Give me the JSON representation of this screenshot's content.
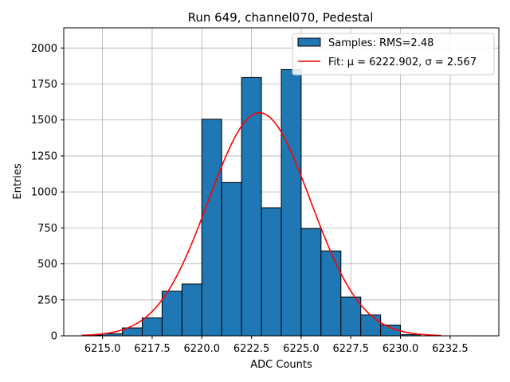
{
  "chart_data": {
    "type": "bar",
    "title": "Run 649, channel070, Pedestal",
    "xlabel": "ADC Counts",
    "ylabel": "Entries",
    "xlim": [
      6213.05,
      6234.95
    ],
    "ylim": [
      0,
      2140
    ],
    "grid": true,
    "legend_position": "top-right",
    "x_ticks": [
      6215.0,
      6217.5,
      6220.0,
      6222.5,
      6225.0,
      6227.5,
      6230.0,
      6232.5
    ],
    "x_tick_labels": [
      "6215.0",
      "6217.5",
      "6220.0",
      "6222.5",
      "6225.0",
      "6227.5",
      "6230.0",
      "6232.5"
    ],
    "y_ticks": [
      0,
      250,
      500,
      750,
      1000,
      1250,
      1500,
      1750,
      2000
    ],
    "y_tick_labels": [
      "0",
      "250",
      "500",
      "750",
      "1000",
      "1250",
      "1500",
      "1750",
      "2000"
    ],
    "histogram": {
      "name": "Samples: RMS=2.48",
      "bin_edges": [
        6214,
        6215,
        6216,
        6217,
        6218,
        6219,
        6220,
        6221,
        6222,
        6223,
        6224,
        6225,
        6226,
        6227,
        6228,
        6229,
        6230,
        6231,
        6232,
        6233,
        6234
      ],
      "counts": [
        5,
        15,
        55,
        125,
        310,
        360,
        1505,
        1065,
        1795,
        890,
        1850,
        745,
        590,
        270,
        145,
        75,
        8,
        0,
        0,
        0
      ],
      "color": "#1f77b4",
      "edge_color": "#000000"
    },
    "fit": {
      "name": "Fit: μ = 6222.902, σ = 2.567",
      "mu": 6222.902,
      "sigma": 2.567,
      "peak": 1550,
      "x_range": [
        6213.95,
        6232.05
      ],
      "color": "#ff0000"
    },
    "legend": [
      {
        "label": "Samples: RMS=2.48",
        "kind": "patch"
      },
      {
        "label": "Fit: μ = 6222.902, σ = 2.567",
        "kind": "line"
      }
    ]
  }
}
